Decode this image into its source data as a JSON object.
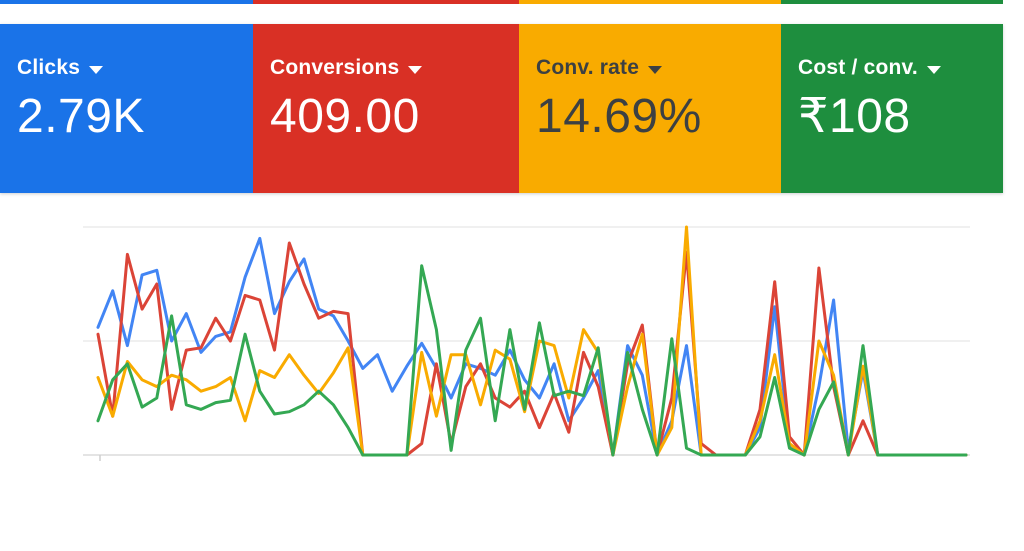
{
  "cards": [
    {
      "id": "clicks",
      "label": "Clicks",
      "value": "2.79K",
      "bg": "#1a73e8",
      "text_color": "#ffffff"
    },
    {
      "id": "conversions",
      "label": "Conversions",
      "value": "409.00",
      "bg": "#d93025",
      "text_color": "#ffffff"
    },
    {
      "id": "conv-rate",
      "label": "Conv. rate",
      "value": "14.69%",
      "bg": "#f9ab00",
      "text_color": "#3c4043"
    },
    {
      "id": "cost-per-conv",
      "label": "Cost / conv.",
      "value": "₹108",
      "bg": "#1e8e3e",
      "text_color": "#ffffff"
    }
  ],
  "chart_data": {
    "type": "line",
    "title": "",
    "legend": "none",
    "grid": "horizontal",
    "x_axis": {
      "label": "",
      "tick_labels": [],
      "points": 60
    },
    "y_axis": {
      "label": "",
      "units": "percent_of_plot_height",
      "range": [
        0,
        100
      ],
      "gridlines": [
        0,
        50,
        100
      ]
    },
    "series": [
      {
        "name": "Clicks",
        "color": "#4285f4",
        "values": [
          56,
          72,
          48,
          79,
          81,
          50,
          62,
          45,
          52,
          54,
          78,
          95,
          62,
          76,
          86,
          64,
          61,
          50,
          38,
          44,
          28,
          39,
          49,
          38,
          25,
          40,
          38,
          35,
          46,
          33,
          25,
          40,
          15,
          25,
          37,
          0,
          48,
          35,
          0,
          15,
          48,
          0,
          0,
          0,
          0,
          12,
          65,
          4,
          0,
          30,
          68,
          2,
          37,
          0,
          0,
          0,
          0,
          0,
          0,
          0
        ]
      },
      {
        "name": "Conversions",
        "color": "#db4437",
        "values": [
          53,
          17,
          88,
          64,
          75,
          20,
          46,
          47,
          60,
          50,
          70,
          68,
          46,
          93,
          75,
          60,
          63,
          62,
          0,
          0,
          0,
          0,
          5,
          40,
          5,
          30,
          40,
          25,
          21,
          28,
          12,
          27,
          10,
          45,
          30,
          0,
          40,
          57,
          0,
          25,
          89,
          5,
          0,
          0,
          0,
          20,
          76,
          8,
          0,
          82,
          30,
          0,
          15,
          0,
          0,
          0,
          0,
          0,
          0,
          0
        ]
      },
      {
        "name": "Conv. rate",
        "color": "#f9ab00",
        "values": [
          34,
          17,
          41,
          33,
          30,
          35,
          33,
          28,
          30,
          34,
          15,
          37,
          34,
          44,
          35,
          27,
          36,
          47,
          0,
          0,
          0,
          0,
          45,
          17,
          44,
          44,
          22,
          46,
          42,
          19,
          50,
          48,
          25,
          55,
          45,
          0,
          30,
          53,
          0,
          12,
          100,
          0,
          0,
          0,
          0,
          15,
          44,
          5,
          0,
          50,
          35,
          0,
          39,
          0,
          0,
          0,
          0,
          0,
          0,
          0
        ]
      },
      {
        "name": "Cost / conv.",
        "color": "#34a853",
        "values": [
          15,
          33,
          40,
          21,
          25,
          61,
          22,
          20,
          23,
          24,
          53,
          28,
          18,
          19,
          22,
          28,
          22,
          12,
          0,
          0,
          0,
          0,
          83,
          55,
          2,
          46,
          60,
          15,
          55,
          20,
          58,
          26,
          28,
          26,
          47,
          0,
          45,
          20,
          0,
          51,
          3,
          0,
          0,
          0,
          0,
          8,
          34,
          3,
          0,
          20,
          32,
          0,
          48,
          0,
          0,
          0,
          0,
          0,
          0,
          0
        ]
      }
    ]
  }
}
